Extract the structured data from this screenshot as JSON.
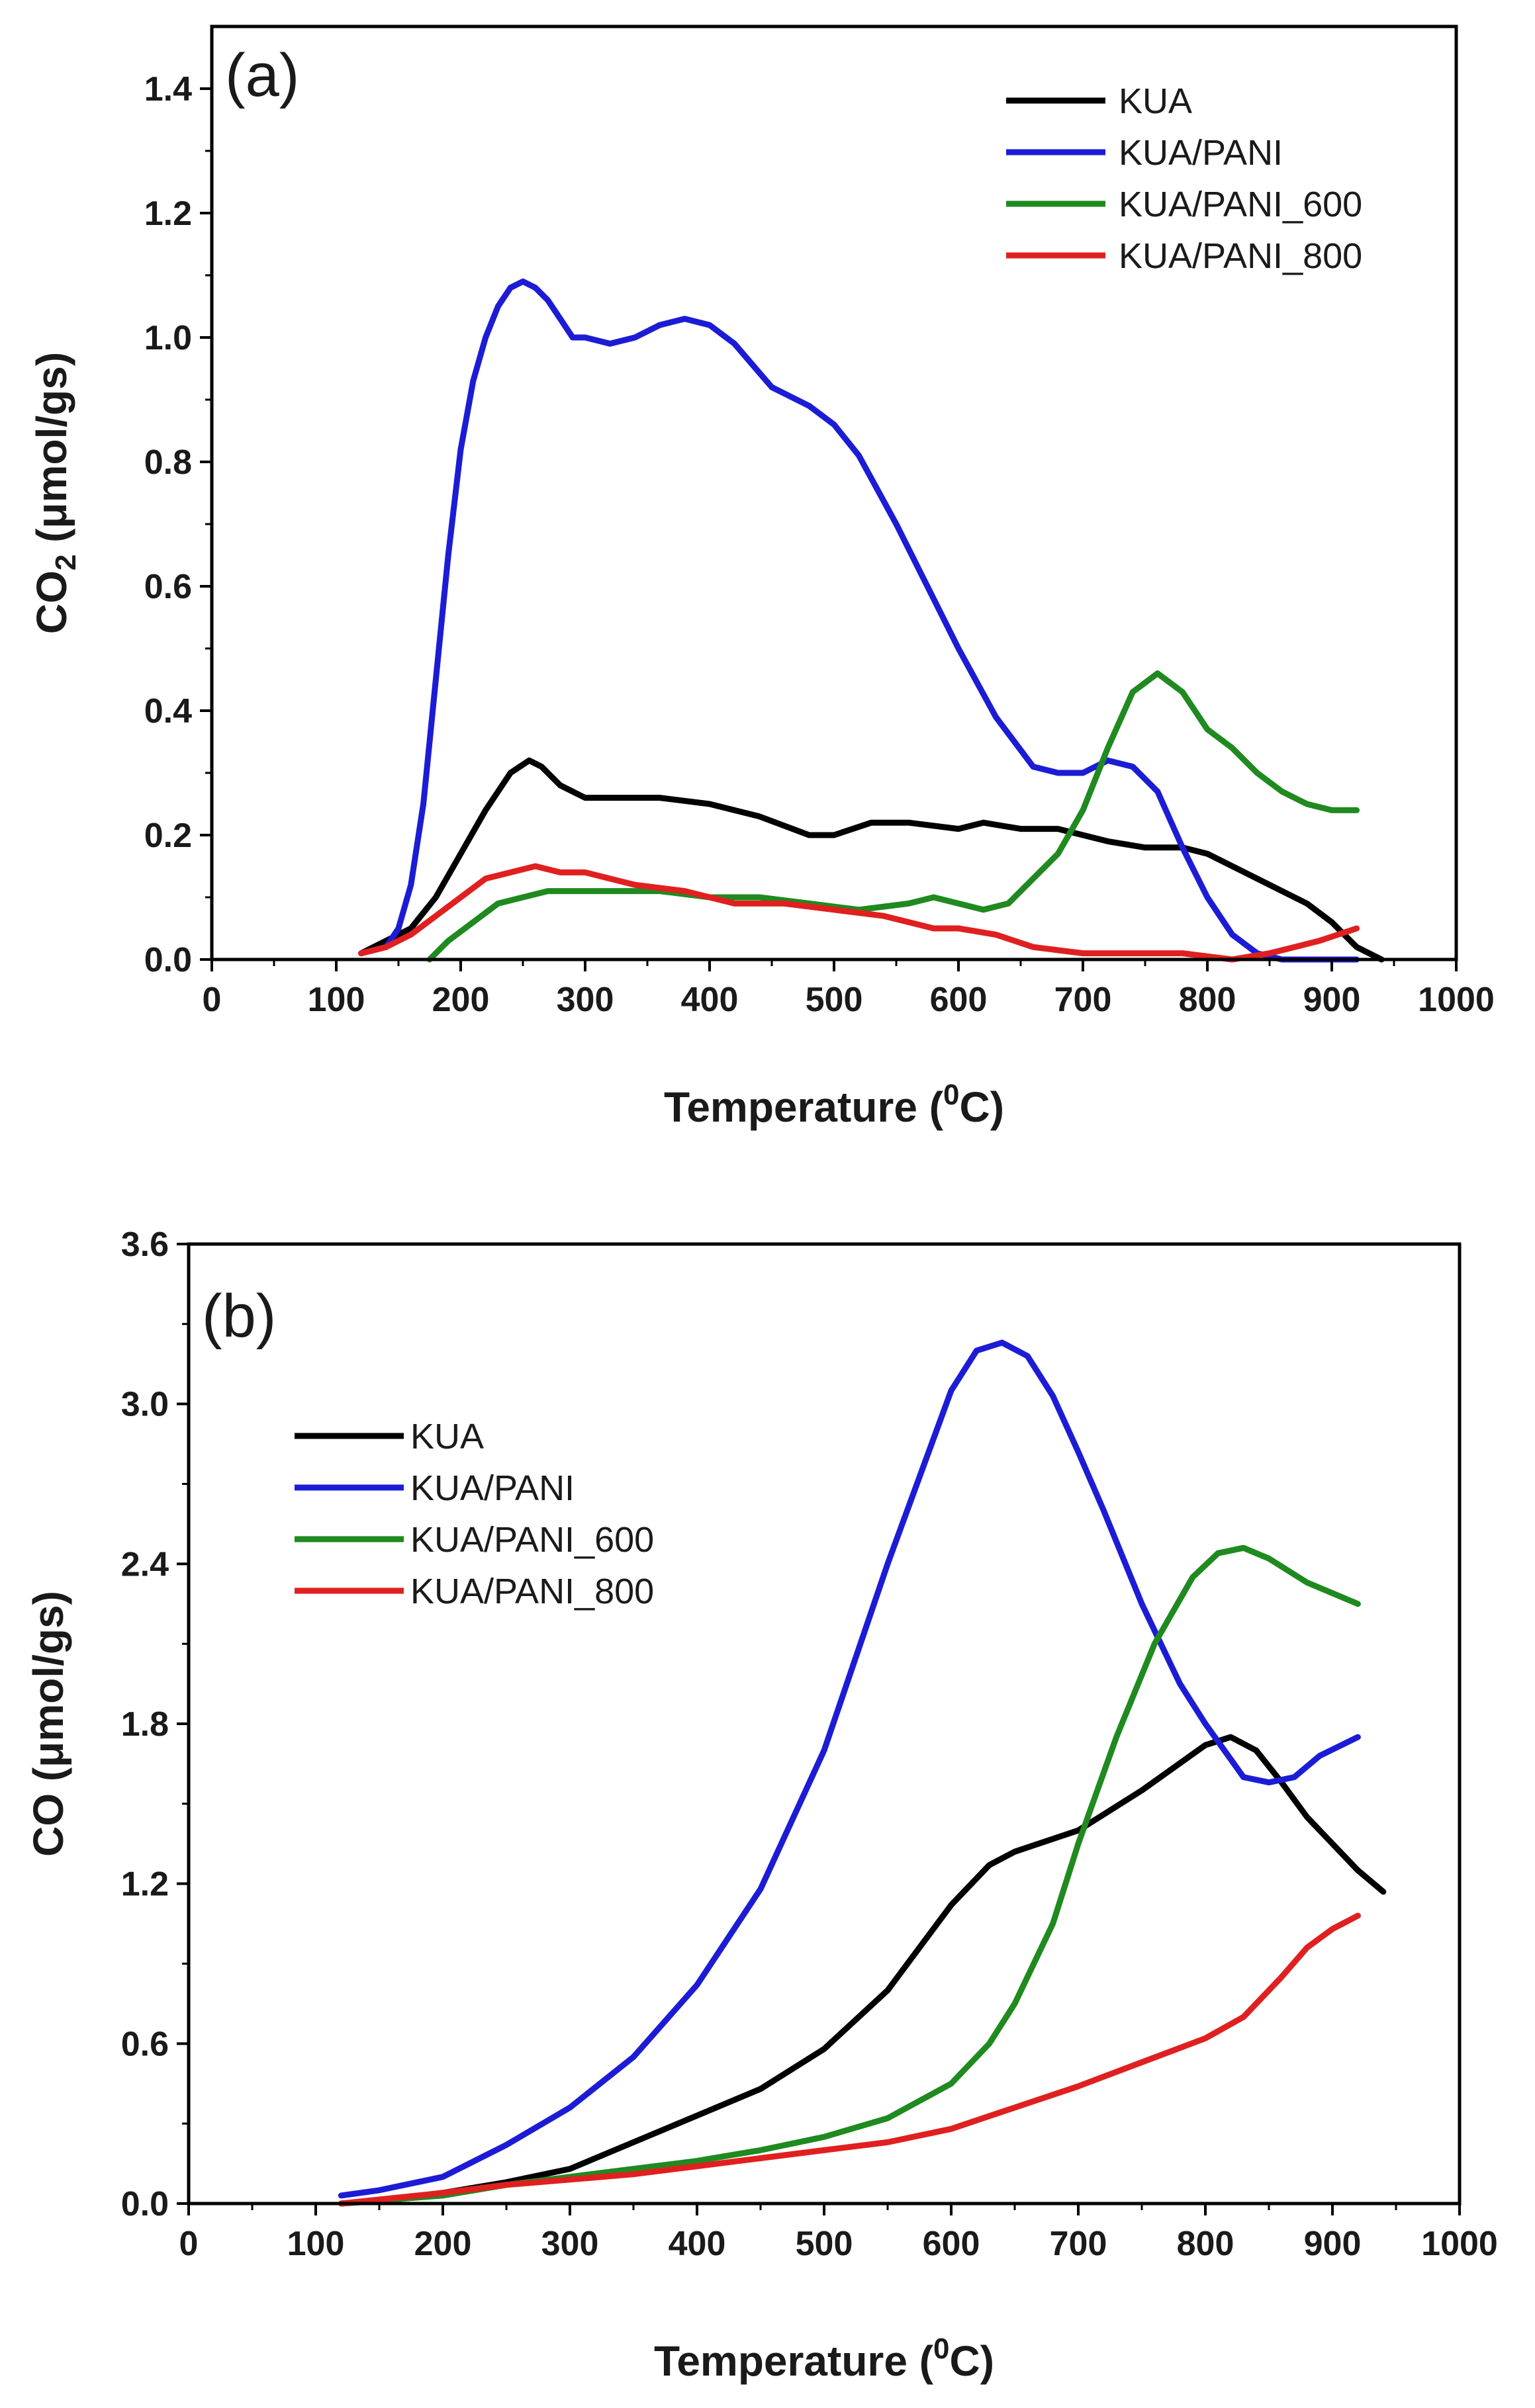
{
  "chart_data": [
    {
      "type": "line",
      "panel_label": "(a)",
      "xlabel": "Temperature (⁰C)",
      "xlabel_main": "Temperature (",
      "xlabel_sup": "0",
      "xlabel_end": "C)",
      "ylabel": "CO₂ (μmol/gs)",
      "ylabel_main": "CO",
      "ylabel_sub": "2",
      "ylabel_end": " (μmol/gs)",
      "xlim": [
        0,
        1000
      ],
      "ylim": [
        0,
        1.5
      ],
      "xticks": [
        0,
        100,
        200,
        300,
        400,
        500,
        600,
        700,
        800,
        900,
        1000
      ],
      "xtick_labels": [
        "0",
        "100",
        "200",
        "300",
        "400",
        "500",
        "600",
        "700",
        "800",
        "900",
        "1000"
      ],
      "yticks": [
        0.0,
        0.2,
        0.4,
        0.6,
        0.8,
        1.0,
        1.2,
        1.4
      ],
      "ytick_labels": [
        "0.0",
        "0.2",
        "0.4",
        "0.6",
        "0.8",
        "1.0",
        "1.2",
        "1.4"
      ],
      "legend_position": "top-right",
      "series": [
        {
          "name": "KUA",
          "color": "#000000",
          "x": [
            120,
            140,
            160,
            180,
            200,
            220,
            240,
            255,
            265,
            280,
            300,
            330,
            360,
            400,
            440,
            480,
            500,
            530,
            560,
            600,
            620,
            650,
            680,
            700,
            720,
            750,
            780,
            800,
            830,
            860,
            880,
            900,
            920,
            940
          ],
          "y": [
            0.01,
            0.03,
            0.05,
            0.1,
            0.17,
            0.24,
            0.3,
            0.32,
            0.31,
            0.28,
            0.26,
            0.26,
            0.26,
            0.25,
            0.23,
            0.2,
            0.2,
            0.22,
            0.22,
            0.21,
            0.22,
            0.21,
            0.21,
            0.2,
            0.19,
            0.18,
            0.18,
            0.17,
            0.14,
            0.11,
            0.09,
            0.06,
            0.02,
            0.0
          ]
        },
        {
          "name": "KUA/PANI",
          "color": "#1c1cd6",
          "x": [
            120,
            140,
            150,
            160,
            170,
            180,
            190,
            200,
            210,
            220,
            230,
            240,
            250,
            260,
            270,
            280,
            290,
            300,
            320,
            340,
            360,
            380,
            400,
            420,
            450,
            480,
            500,
            520,
            550,
            580,
            600,
            630,
            660,
            680,
            700,
            720,
            740,
            760,
            780,
            800,
            820,
            840,
            860,
            880,
            900,
            920
          ],
          "y": [
            0.01,
            0.02,
            0.05,
            0.12,
            0.25,
            0.45,
            0.65,
            0.82,
            0.93,
            1.0,
            1.05,
            1.08,
            1.09,
            1.08,
            1.06,
            1.03,
            1.0,
            1.0,
            0.99,
            1.0,
            1.02,
            1.03,
            1.02,
            0.99,
            0.92,
            0.89,
            0.86,
            0.81,
            0.7,
            0.58,
            0.5,
            0.39,
            0.31,
            0.3,
            0.3,
            0.32,
            0.31,
            0.27,
            0.18,
            0.1,
            0.04,
            0.01,
            0.0,
            0.0,
            0.0,
            0.0
          ]
        },
        {
          "name": "KUA/PANI_600",
          "color": "#1f8a1f",
          "x": [
            175,
            190,
            210,
            230,
            250,
            270,
            300,
            330,
            360,
            400,
            440,
            480,
            520,
            560,
            580,
            600,
            620,
            640,
            660,
            680,
            700,
            720,
            740,
            760,
            780,
            800,
            820,
            840,
            860,
            880,
            900,
            920
          ],
          "y": [
            0.0,
            0.03,
            0.06,
            0.09,
            0.1,
            0.11,
            0.11,
            0.11,
            0.11,
            0.1,
            0.1,
            0.09,
            0.08,
            0.09,
            0.1,
            0.09,
            0.08,
            0.09,
            0.13,
            0.17,
            0.24,
            0.34,
            0.43,
            0.46,
            0.43,
            0.37,
            0.34,
            0.3,
            0.27,
            0.25,
            0.24,
            0.24
          ]
        },
        {
          "name": "KUA/PANI_800",
          "color": "#e02020",
          "x": [
            120,
            140,
            160,
            180,
            200,
            220,
            240,
            260,
            280,
            300,
            340,
            380,
            420,
            460,
            500,
            540,
            580,
            600,
            630,
            660,
            700,
            740,
            780,
            820,
            850,
            870,
            890,
            905,
            920
          ],
          "y": [
            0.01,
            0.02,
            0.04,
            0.07,
            0.1,
            0.13,
            0.14,
            0.15,
            0.14,
            0.14,
            0.12,
            0.11,
            0.09,
            0.09,
            0.08,
            0.07,
            0.05,
            0.05,
            0.04,
            0.02,
            0.01,
            0.01,
            0.01,
            0.0,
            0.01,
            0.02,
            0.03,
            0.04,
            0.05
          ]
        }
      ]
    },
    {
      "type": "line",
      "panel_label": "(b)",
      "xlabel": "Temperature (⁰C)",
      "xlabel_main": "Temperature (",
      "xlabel_sup": "0",
      "xlabel_end": "C)",
      "ylabel": "CO (μmol/gs)",
      "ylabel_main": "CO (μmol/gs)",
      "ylabel_sub": "",
      "ylabel_end": "",
      "xlim": [
        0,
        1000
      ],
      "ylim": [
        0,
        3.6
      ],
      "xticks": [
        0,
        100,
        200,
        300,
        400,
        500,
        600,
        700,
        800,
        900,
        1000
      ],
      "xtick_labels": [
        "0",
        "100",
        "200",
        "300",
        "400",
        "500",
        "600",
        "700",
        "800",
        "900",
        "1000"
      ],
      "yticks": [
        0.0,
        0.6,
        1.2,
        1.8,
        2.4,
        3.0,
        3.6
      ],
      "ytick_labels": [
        "0.0",
        "0.6",
        "1.2",
        "1.8",
        "2.4",
        "3.0",
        "3.6"
      ],
      "legend_position": "top-left",
      "series": [
        {
          "name": "KUA",
          "color": "#000000",
          "x": [
            120,
            150,
            200,
            250,
            300,
            350,
            400,
            450,
            500,
            550,
            600,
            630,
            650,
            700,
            750,
            800,
            820,
            840,
            860,
            880,
            900,
            920,
            940
          ],
          "y": [
            0.0,
            0.01,
            0.04,
            0.08,
            0.13,
            0.23,
            0.33,
            0.43,
            0.58,
            0.8,
            1.12,
            1.27,
            1.32,
            1.4,
            1.55,
            1.72,
            1.75,
            1.7,
            1.58,
            1.45,
            1.35,
            1.25,
            1.17
          ]
        },
        {
          "name": "KUA/PANI",
          "color": "#1c1cd6",
          "x": [
            120,
            150,
            200,
            250,
            300,
            350,
            400,
            450,
            500,
            550,
            600,
            620,
            640,
            660,
            680,
            700,
            720,
            750,
            780,
            800,
            830,
            850,
            870,
            890,
            920
          ],
          "y": [
            0.03,
            0.05,
            0.1,
            0.22,
            0.36,
            0.55,
            0.82,
            1.18,
            1.7,
            2.4,
            3.05,
            3.2,
            3.23,
            3.18,
            3.03,
            2.82,
            2.6,
            2.25,
            1.95,
            1.8,
            1.6,
            1.58,
            1.6,
            1.68,
            1.75
          ]
        },
        {
          "name": "KUA/PANI_600",
          "color": "#1f8a1f",
          "x": [
            120,
            200,
            250,
            300,
            350,
            400,
            450,
            500,
            550,
            600,
            630,
            650,
            680,
            700,
            730,
            760,
            790,
            810,
            830,
            850,
            880,
            920
          ],
          "y": [
            0.0,
            0.03,
            0.07,
            0.1,
            0.13,
            0.16,
            0.2,
            0.25,
            0.32,
            0.45,
            0.6,
            0.75,
            1.05,
            1.35,
            1.75,
            2.1,
            2.35,
            2.44,
            2.46,
            2.42,
            2.33,
            2.25
          ]
        },
        {
          "name": "KUA/PANI_800",
          "color": "#e02020",
          "x": [
            120,
            200,
            250,
            300,
            350,
            400,
            450,
            500,
            550,
            600,
            650,
            700,
            750,
            800,
            830,
            860,
            880,
            900,
            920
          ],
          "y": [
            0.0,
            0.04,
            0.07,
            0.09,
            0.11,
            0.14,
            0.17,
            0.2,
            0.23,
            0.28,
            0.36,
            0.44,
            0.53,
            0.62,
            0.7,
            0.85,
            0.96,
            1.03,
            1.08
          ]
        }
      ]
    }
  ]
}
